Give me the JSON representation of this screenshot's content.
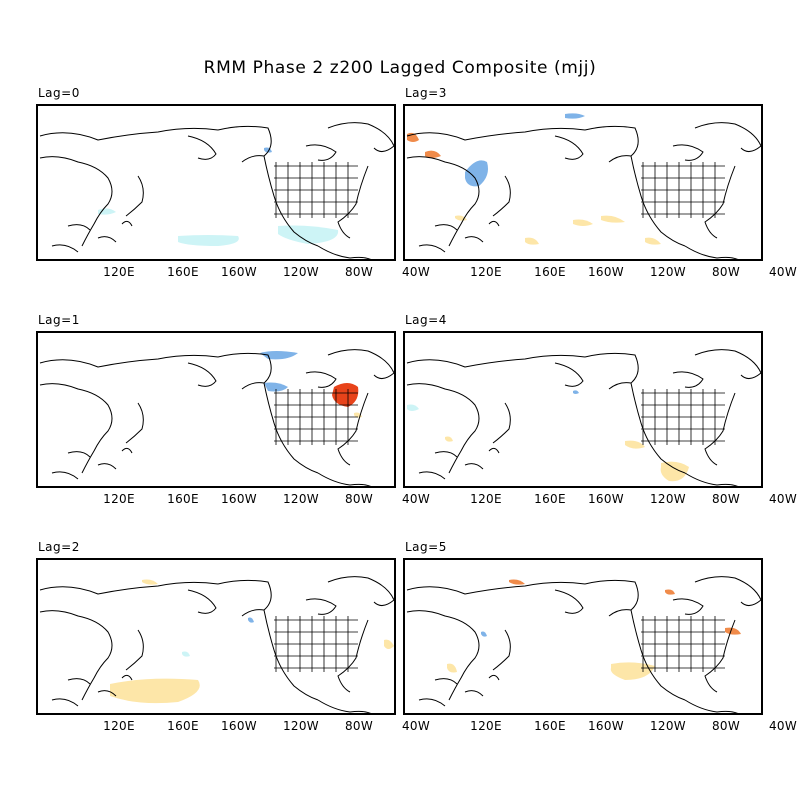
{
  "title": "RMM Phase 2 z200 Lagged Composite (mjj)",
  "longitude_ticks": [
    "120E",
    "160E",
    "160W",
    "120W",
    "80W",
    "40W"
  ],
  "colors": {
    "positive_strong": "#e8431a",
    "positive_mid": "#f08b4a",
    "positive_weak": "#fde6a8",
    "negative_mid": "#7fb3e8",
    "negative_weak": "#cdf4f6",
    "coast": "#000000"
  },
  "panels": [
    {
      "id": "lag0",
      "label": "Lag=0"
    },
    {
      "id": "lag3",
      "label": "Lag=3"
    },
    {
      "id": "lag1",
      "label": "Lag=1"
    },
    {
      "id": "lag4",
      "label": "Lag=4"
    },
    {
      "id": "lag2",
      "label": "Lag=2"
    },
    {
      "id": "lag5",
      "label": "Lag=5"
    }
  ]
}
